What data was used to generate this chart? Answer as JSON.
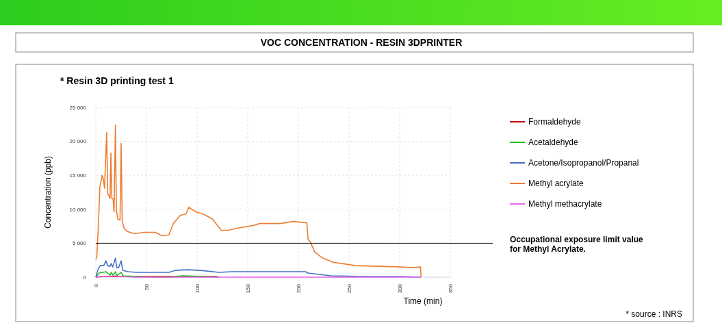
{
  "chart_data": {
    "type": "line",
    "title": "VOC CONCENTRATION - RESIN 3DPRINTER",
    "subtitle": "* Resin 3D printing test 1",
    "xlabel": "Time (min)",
    "ylabel": "Concentration (ppb)",
    "annotations": [
      "* source : INRS"
    ],
    "xlim": [
      0,
      350
    ],
    "xticks": [
      0,
      50,
      100,
      150,
      200,
      250,
      300,
      350
    ],
    "ylim": [
      0,
      25000
    ],
    "yticks": [
      0,
      {
        "value": 5000,
        "label": "5 000"
      },
      {
        "value": 10000,
        "label": "10 000"
      },
      {
        "value": 15000,
        "label": "15 000"
      },
      {
        "value": 20000,
        "label": "20 000"
      },
      {
        "value": 25000,
        "label": "25 000"
      }
    ],
    "grid": true,
    "legend": "right",
    "marker": "none",
    "line_style": "solid",
    "ref_lines": [
      {
        "axis": "y",
        "value": 5000,
        "label": "Occupational exposure limit value for Methyl Acrylate.",
        "color": "#000000"
      }
    ],
    "series": [
      {
        "name": "Formaldehyde",
        "color": "#cc0000",
        "x": [
          0,
          5,
          15,
          30,
          60,
          120
        ],
        "values": [
          0,
          100,
          100,
          100,
          100,
          100
        ]
      },
      {
        "name": "Acetaldehyde",
        "color": "#22bb22",
        "x": [
          0,
          3.4,
          10.1,
          14,
          15.3,
          17,
          19.4,
          20.7,
          25,
          27,
          40.5,
          58.6,
          72,
          85.6,
          108,
          121.6
        ],
        "values": [
          0,
          600,
          800,
          300,
          700,
          300,
          800,
          200,
          700,
          200,
          100,
          0,
          0,
          200,
          100,
          0
        ]
      },
      {
        "name": "Acetone/Isopropanol/Propanal",
        "color": "#4472c4",
        "x": [
          0,
          2.3,
          4.5,
          7.9,
          10.1,
          11.7,
          14,
          15.3,
          16.7,
          19.4,
          20.7,
          22.5,
          25,
          26.6,
          31.5,
          40.5,
          58.6,
          72,
          78.8,
          90,
          103.6,
          121.6,
          135,
          155,
          180,
          207,
          209.5,
          232,
          268,
          300,
          321
        ],
        "values": [
          0,
          1200,
          1700,
          1700,
          2400,
          1700,
          1600,
          2000,
          1500,
          2800,
          1400,
          1400,
          2400,
          1000,
          800,
          700,
          700,
          700,
          1000,
          1100,
          1000,
          700,
          800,
          800,
          800,
          800,
          600,
          200,
          100,
          100,
          0
        ]
      },
      {
        "name": "Methyl acrylate",
        "color": "#ed7d31",
        "x": [
          0,
          1,
          2.3,
          3.4,
          4,
          5.2,
          6.3,
          7.4,
          8.6,
          9.7,
          10.8,
          11.7,
          13,
          14,
          14.9,
          15.8,
          17,
          18,
          19.4,
          20.3,
          21.6,
          23.9,
          25,
          26.1,
          28.2,
          31.5,
          38.3,
          47.3,
          58.6,
          65.3,
          72,
          76.6,
          83.3,
          89,
          91.9,
          99,
          105.9,
          114.9,
          123.9,
          130.6,
          139.6,
          155,
          162,
          182.4,
          194.8,
          208.4,
          209.5,
          211.7,
          216.2,
          223,
          234.2,
          256.8,
          279.3,
          301.8,
          313,
          320.5,
          321.2
        ],
        "values": [
          2600,
          3000,
          6900,
          10900,
          13300,
          14100,
          15000,
          14500,
          13100,
          17300,
          21300,
          12300,
          12000,
          11600,
          18300,
          11600,
          11600,
          9600,
          22400,
          9900,
          8600,
          8400,
          19700,
          8200,
          7100,
          6700,
          6400,
          6600,
          6600,
          6100,
          6200,
          7900,
          9100,
          9300,
          10300,
          9600,
          9300,
          8600,
          6900,
          6900,
          7200,
          7600,
          7900,
          7900,
          8200,
          8000,
          5600,
          5200,
          3700,
          2900,
          2200,
          1700,
          1600,
          1500,
          1400,
          1500,
          0
        ]
      },
      {
        "name": "Methyl methacrylate",
        "color": "#ee66ee",
        "x": [
          0,
          10,
          19.4,
          22,
          40,
          100,
          200,
          321
        ],
        "values": [
          0,
          100,
          200,
          100,
          0,
          0,
          0,
          0
        ]
      }
    ]
  }
}
